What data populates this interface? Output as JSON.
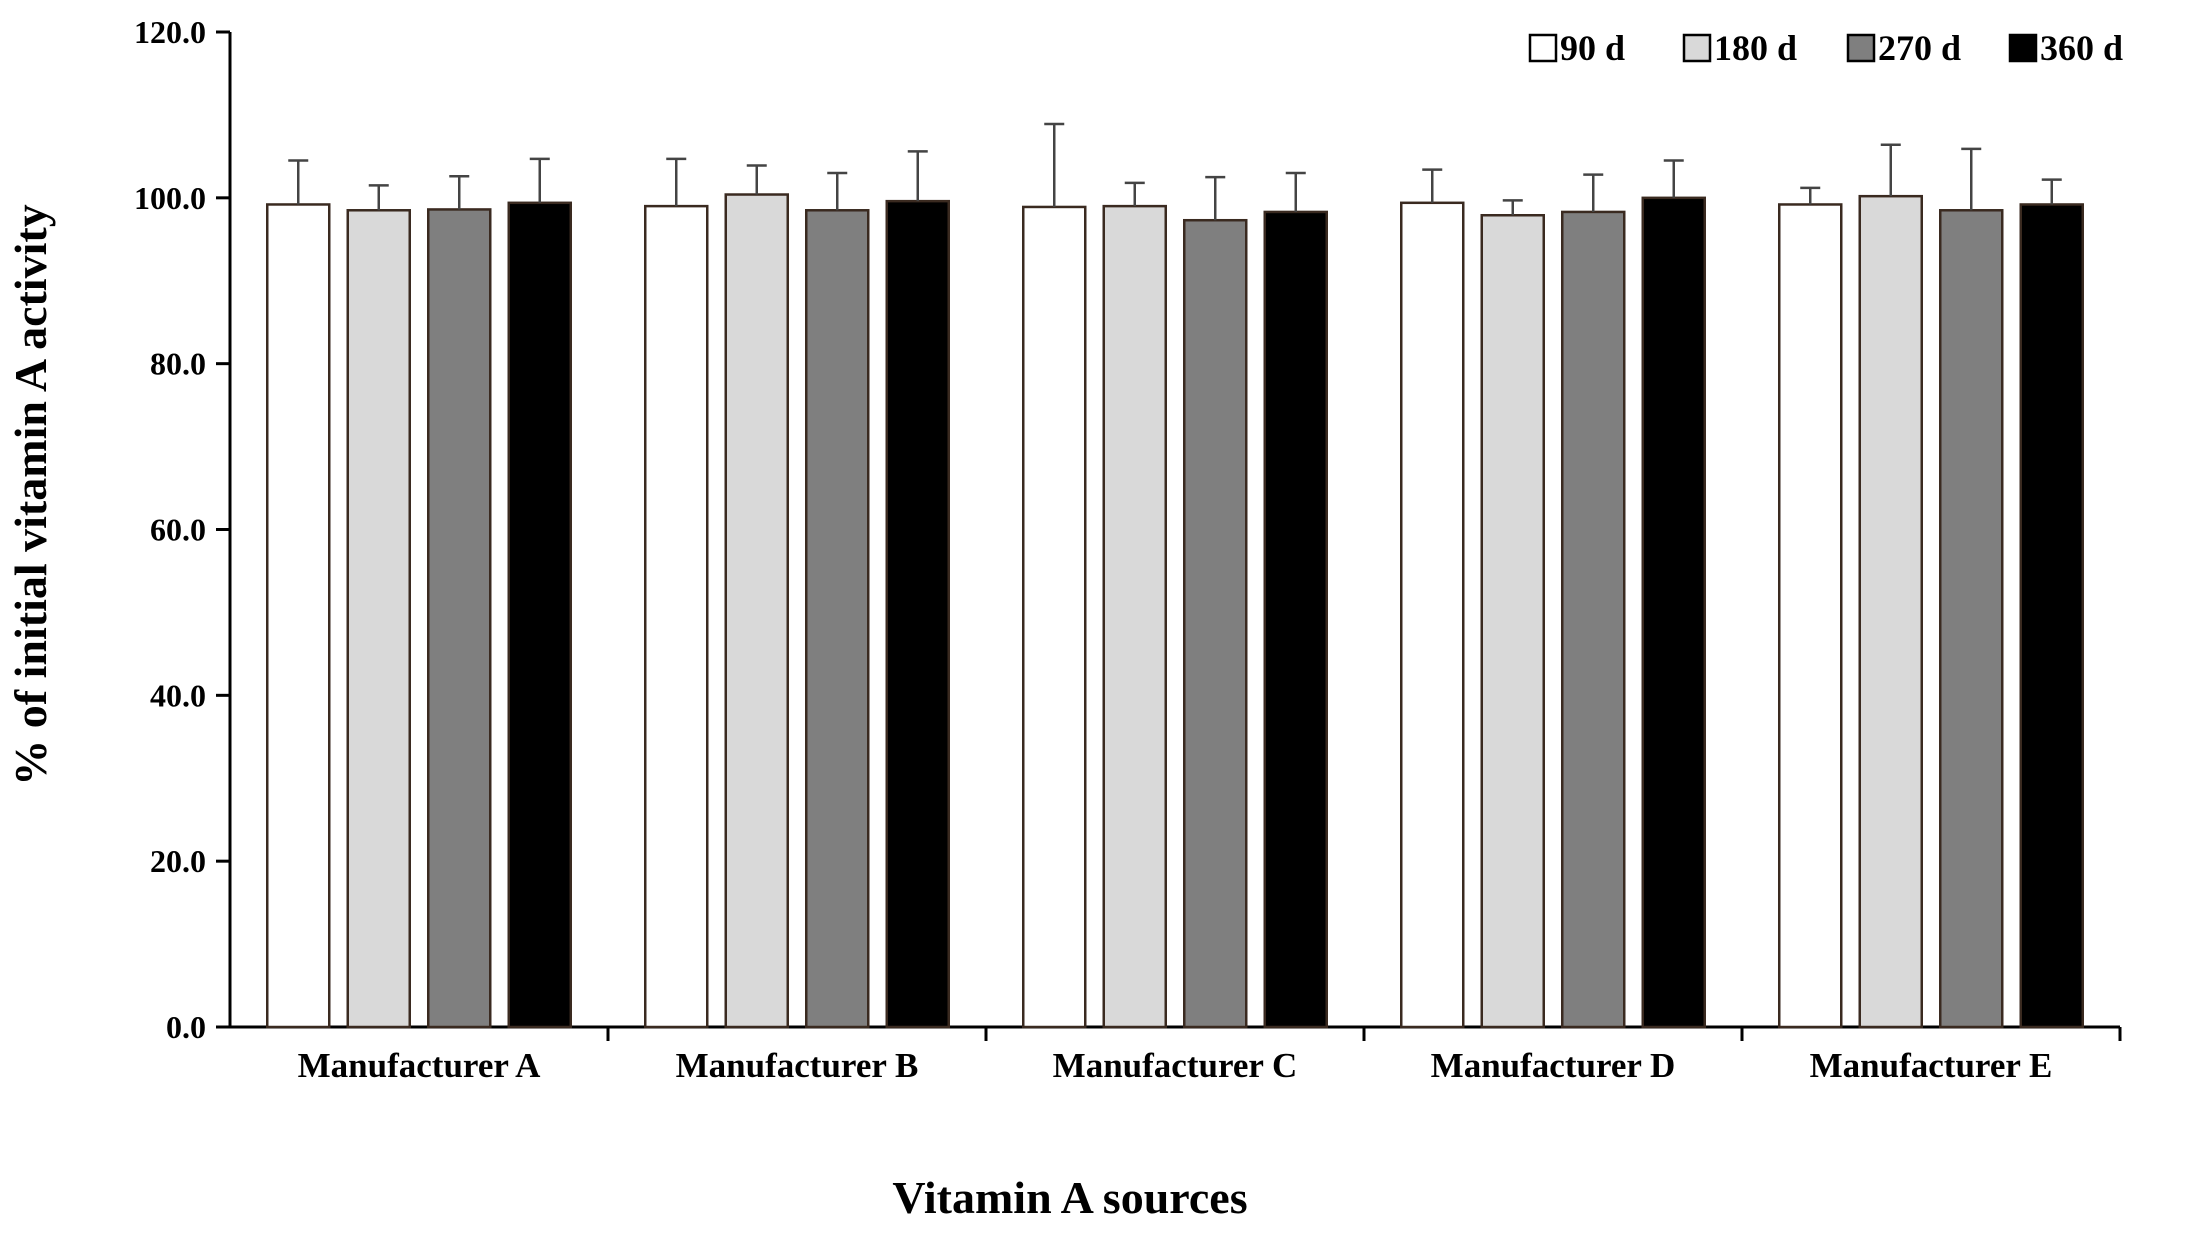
{
  "chart_data": {
    "type": "bar",
    "title": "",
    "xlabel": "Vitamin A sources",
    "ylabel": "% of initial vitamin A activity",
    "ylim": [
      0,
      120
    ],
    "yticks": [
      "0.0",
      "20.0",
      "40.0",
      "60.0",
      "80.0",
      "100.0",
      "120.0"
    ],
    "grid": false,
    "legend_position": "top-right",
    "categories": [
      "Manufacturer A",
      "Manufacturer B",
      "Manufacturer C",
      "Manufacturer D",
      "Manufacturer E"
    ],
    "series": [
      {
        "name": "90 d",
        "color": "#ffffff",
        "values": [
          99.2,
          99.0,
          98.9,
          99.4,
          99.2
        ],
        "errors": [
          5.3,
          5.7,
          10.0,
          4.0,
          2.0
        ]
      },
      {
        "name": "180 d",
        "color": "#d9d9d9",
        "values": [
          98.5,
          100.4,
          99.0,
          97.9,
          100.2
        ],
        "errors": [
          3.0,
          3.5,
          2.8,
          1.8,
          6.2
        ]
      },
      {
        "name": "270 d",
        "color": "#7f7f7f",
        "values": [
          98.6,
          98.5,
          97.3,
          98.3,
          98.5
        ],
        "errors": [
          4.0,
          4.5,
          5.2,
          4.5,
          7.4
        ]
      },
      {
        "name": "360 d",
        "color": "#000000",
        "values": [
          99.4,
          99.6,
          98.3,
          100.0,
          99.2
        ],
        "errors": [
          5.3,
          6.0,
          4.7,
          4.5,
          3.0
        ]
      }
    ]
  }
}
